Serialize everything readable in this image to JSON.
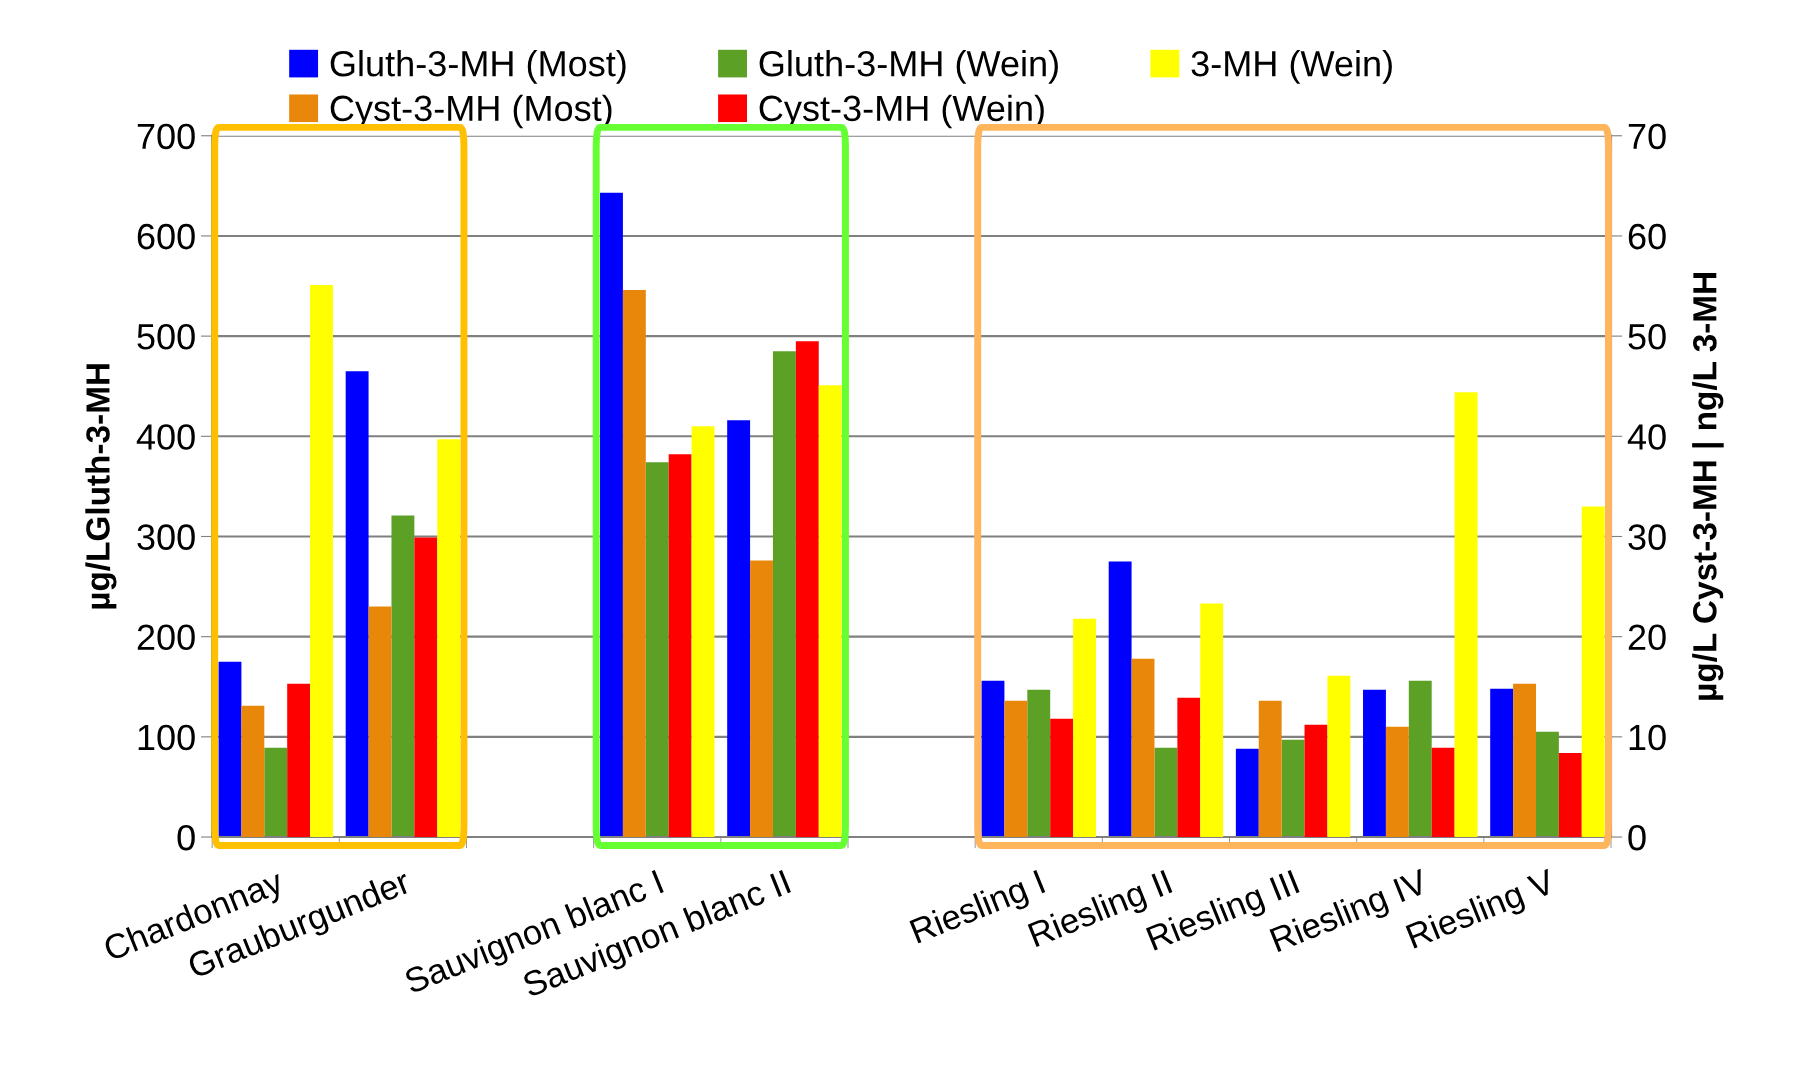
{
  "chart_data": {
    "type": "bar",
    "ylabel": "µg/LGluth-3-MH",
    "y2label": "µg/L Cyst-3-MH | ng/L 3-MH",
    "categories": [
      "Chardonnay",
      "Grauburgunder",
      null,
      "Sauvignon blanc I",
      "Sauvignon blanc II",
      null,
      "Riesling I",
      "Riesling II",
      "Riesling III",
      "Riesling IV",
      "Riesling V"
    ],
    "series": [
      {
        "name": "Gluth-3-MH (Most)",
        "color": "#0000ff",
        "values": [
          175,
          465,
          null,
          643,
          416,
          null,
          156,
          275,
          88,
          147,
          148
        ]
      },
      {
        "name": "Cyst-3-MH (Most)",
        "color": "#e8870a",
        "axis": "y2",
        "values": [
          13.1,
          23.0,
          null,
          54.6,
          27.6,
          null,
          13.6,
          17.8,
          13.6,
          11.0,
          15.3
        ]
      },
      {
        "name": "Gluth-3-MH (Wein)",
        "color": "#5da026",
        "values": [
          89,
          321,
          null,
          374,
          485,
          null,
          147,
          89,
          97,
          156,
          105
        ]
      },
      {
        "name": "Cyst-3-MH (Wein)",
        "color": "#ff0000",
        "axis": "y2",
        "values": [
          15.3,
          29.9,
          null,
          38.2,
          49.5,
          null,
          11.8,
          13.9,
          11.2,
          8.9,
          8.4
        ]
      },
      {
        "name": "3-MH (Wein)",
        "color": "#ffff00",
        "axis": "y2",
        "values": [
          55.1,
          39.7,
          null,
          41.0,
          45.1,
          null,
          21.8,
          23.3,
          16.1,
          44.4,
          33.0
        ]
      }
    ],
    "ylim": [
      0,
      700
    ],
    "yticks": [
      0,
      100,
      200,
      300,
      400,
      500,
      600,
      700
    ],
    "y2lim": [
      0,
      70
    ],
    "y2ticks": [
      0,
      10,
      20,
      30,
      40,
      50,
      60,
      70
    ],
    "grid": "y",
    "legend": "top"
  }
}
